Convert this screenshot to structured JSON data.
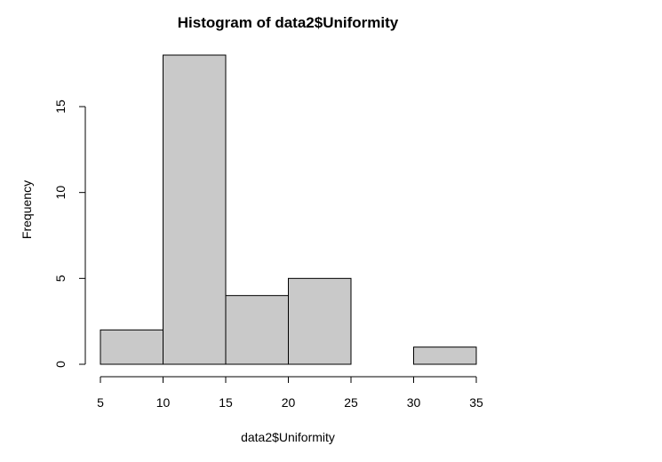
{
  "chart_data": {
    "type": "bar",
    "title": "Histogram of data2$Uniformity",
    "xlabel": "data2$Uniformity",
    "ylabel": "Frequency",
    "bins": [
      {
        "start": 5,
        "end": 10,
        "value": 2
      },
      {
        "start": 10,
        "end": 15,
        "value": 18
      },
      {
        "start": 15,
        "end": 20,
        "value": 4
      },
      {
        "start": 20,
        "end": 25,
        "value": 5
      },
      {
        "start": 25,
        "end": 30,
        "value": 0
      },
      {
        "start": 30,
        "end": 35,
        "value": 1
      }
    ],
    "xlim": [
      5,
      35
    ],
    "ylim": [
      0,
      18
    ],
    "x_ticks": [
      5,
      10,
      15,
      20,
      25,
      30,
      35
    ],
    "y_ticks": [
      0,
      5,
      10,
      15
    ],
    "grid": false,
    "colors": {
      "bar_fill": "#c9c9c9",
      "bar_stroke": "#000000"
    }
  }
}
